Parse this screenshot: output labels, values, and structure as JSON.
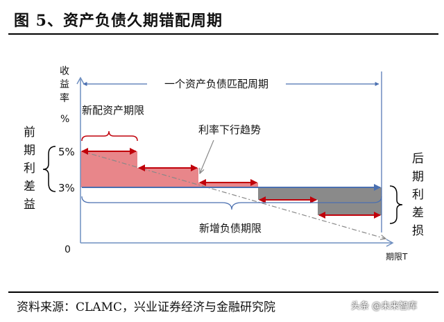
{
  "figure": {
    "title": "图 5、资产负债久期错配周期",
    "source": "资料来源：CLAMC，兴业证券经济与金融研究院",
    "watermark": "头条 @未来智库"
  },
  "diagram": {
    "y_axis_label_lines": [
      "收",
      "益",
      "率",
      "%"
    ],
    "x_axis_label": "期限T",
    "origin_label": "0",
    "tick_5pct": "5%",
    "tick_3pct": "3%",
    "cycle_label": "一个资产负债匹配周期",
    "new_asset_term_label": "新配资产期限",
    "rate_trend_label": "利率下行趋势",
    "new_liability_term_label": "新增负债期限",
    "left_label_chars": [
      "前",
      "期",
      "利",
      "差",
      "益"
    ],
    "right_label_chars": [
      "后",
      "期",
      "利",
      "差",
      "损"
    ],
    "colors": {
      "profit_fill": "#e8868a",
      "loss_fill": "#8a8a8a",
      "red_arrow": "#c0000a",
      "blue_line": "#4a6fb0",
      "axis": "#6f8fc0"
    }
  }
}
